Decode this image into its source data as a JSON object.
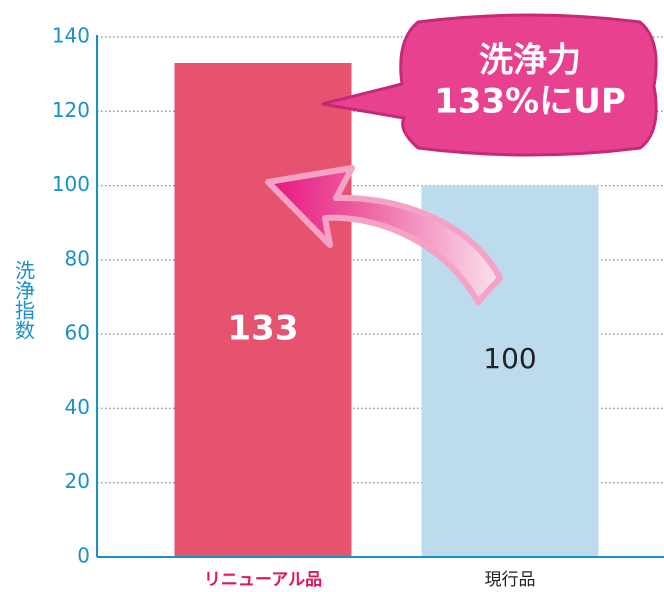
{
  "chart_data": {
    "type": "bar",
    "y_label": "洗浄指数",
    "categories": [
      "リニューアル品",
      "現行品"
    ],
    "values": [
      133,
      100
    ],
    "colors": [
      "#e6536f",
      "#bcdcee"
    ],
    "ylim": [
      0,
      140
    ],
    "yticks": [
      0,
      20,
      40,
      60,
      80,
      100,
      120,
      140
    ],
    "grid": true,
    "annotation": [
      "洗浄力",
      "133%にUP"
    ]
  }
}
